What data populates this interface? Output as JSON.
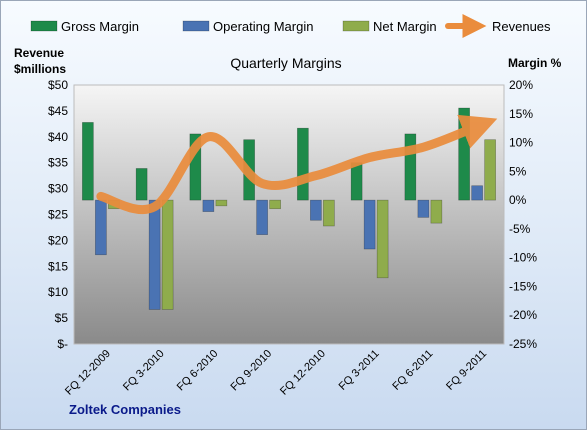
{
  "chart_data": {
    "type": "bar",
    "title": "Quarterly Margins",
    "categories": [
      "FQ 12-2009",
      "FQ 3-2010",
      "FQ 6-2010",
      "FQ 9-2010",
      "FQ 12-2010",
      "FQ 3-2011",
      "FQ 6-2011",
      "FQ 9-2011"
    ],
    "series": [
      {
        "name": "Gross Margin",
        "axis": "right",
        "values": [
          13.5,
          5.5,
          11.5,
          10.5,
          12.5,
          6.5,
          11.5,
          16.0
        ]
      },
      {
        "name": "Operating Margin",
        "axis": "right",
        "values": [
          -9.5,
          -19.0,
          -2.0,
          -6.0,
          -3.5,
          -8.5,
          -3.0,
          2.5
        ]
      },
      {
        "name": "Net Margin",
        "axis": "right",
        "values": [
          -1.5,
          -19.0,
          -1.0,
          -1.5,
          -4.5,
          -13.5,
          -4.0,
          10.5
        ]
      },
      {
        "name": "Revenues",
        "type": "line",
        "axis": "left",
        "values": [
          28.5,
          26.5,
          40.0,
          31.0,
          32.5,
          36.0,
          38.0,
          42.0
        ]
      }
    ],
    "left_axis": {
      "title_line1": "Revenue",
      "title_line2": "$millions",
      "min": 0,
      "max": 50,
      "step": 5,
      "tick_labels": [
        "$-",
        "$5",
        "$10",
        "$15",
        "$20",
        "$25",
        "$30",
        "$35",
        "$40",
        "$45",
        "$50"
      ]
    },
    "right_axis": {
      "title": "Margin %",
      "min": -25,
      "max": 20,
      "step": 5,
      "tick_labels": [
        "-25%",
        "-20%",
        "-15%",
        "-10%",
        "-5%",
        "0%",
        "5%",
        "10%",
        "15%",
        "20%"
      ]
    },
    "legend": {
      "position": "top"
    },
    "footer": "Zoltek Companies",
    "colors": {
      "gross": "#1e8a4a",
      "operating": "#4a73b3",
      "net": "#8fac4c",
      "revenue": "#ea8c3c"
    }
  }
}
